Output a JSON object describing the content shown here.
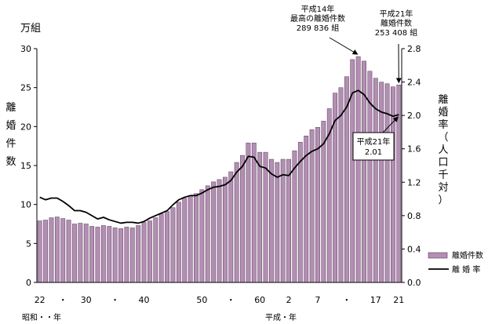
{
  "chart_data": {
    "type": "bar",
    "title": "",
    "left_unit": "万組",
    "left_axis_label": [
      "離",
      "婚",
      "件",
      "数"
    ],
    "right_axis_label": [
      "離",
      "婚",
      "率",
      "（",
      "人",
      "口",
      "千",
      "対",
      "）"
    ],
    "xlabel_showa": "昭和・・年",
    "xlabel_heisei": "平成・年",
    "x_ticks": [
      "22",
      "・",
      "30",
      "・",
      "40",
      "50",
      "・",
      "60",
      "2",
      "7",
      "・",
      "17",
      "21"
    ],
    "ylim_left": [
      0,
      30
    ],
    "ylim_right": [
      0,
      2.8
    ],
    "yticks_left": [
      "0",
      "5",
      "10",
      "15",
      "20",
      "25",
      "30"
    ],
    "yticks_right": [
      "0.0",
      "0.4",
      "0.8",
      "1.2",
      "1.6",
      "2.0",
      "2.4",
      "2.8"
    ],
    "categories": [
      "S22",
      "S23",
      "S24",
      "S25",
      "S26",
      "S27",
      "S28",
      "S29",
      "S30",
      "S31",
      "S32",
      "S33",
      "S34",
      "S35",
      "S36",
      "S37",
      "S38",
      "S39",
      "S40",
      "S41",
      "S42",
      "S43",
      "S44",
      "S45",
      "S46",
      "S47",
      "S48",
      "S49",
      "S50",
      "S51",
      "S52",
      "S53",
      "S54",
      "S55",
      "S56",
      "S57",
      "S58",
      "S59",
      "S60",
      "S61",
      "S62",
      "S63",
      "H1",
      "H2",
      "H3",
      "H4",
      "H5",
      "H6",
      "H7",
      "H8",
      "H9",
      "H10",
      "H11",
      "H12",
      "H13",
      "H14",
      "H15",
      "H16",
      "H17",
      "H18",
      "H19",
      "H20",
      "H21"
    ],
    "series": [
      {
        "name": "離婚件数",
        "axis": "left",
        "color": "#b38fb3",
        "values": [
          7.9,
          8.0,
          8.3,
          8.4,
          8.2,
          8.0,
          7.5,
          7.6,
          7.5,
          7.2,
          7.1,
          7.3,
          7.2,
          7.0,
          6.9,
          7.1,
          7.0,
          7.3,
          7.7,
          7.9,
          8.3,
          8.8,
          9.1,
          9.6,
          10.3,
          10.8,
          11.1,
          11.4,
          11.9,
          12.4,
          12.9,
          13.2,
          13.5,
          14.2,
          15.4,
          16.3,
          17.9,
          17.9,
          16.7,
          16.7,
          15.8,
          15.4,
          15.8,
          15.8,
          16.9,
          18.0,
          18.8,
          19.6,
          19.9,
          20.7,
          22.3,
          24.3,
          25.0,
          26.4,
          28.6,
          28.98,
          28.4,
          27.1,
          26.2,
          25.7,
          25.5,
          25.1,
          25.34
        ]
      },
      {
        "name": "離婚率",
        "axis": "right",
        "color": "#000000",
        "values": [
          1.02,
          0.99,
          1.01,
          1.01,
          0.97,
          0.92,
          0.86,
          0.86,
          0.84,
          0.8,
          0.76,
          0.78,
          0.75,
          0.73,
          0.71,
          0.72,
          0.72,
          0.71,
          0.73,
          0.77,
          0.8,
          0.83,
          0.86,
          0.93,
          0.99,
          1.02,
          1.04,
          1.04,
          1.07,
          1.11,
          1.14,
          1.15,
          1.17,
          1.22,
          1.32,
          1.39,
          1.51,
          1.5,
          1.39,
          1.37,
          1.3,
          1.26,
          1.29,
          1.28,
          1.37,
          1.45,
          1.52,
          1.57,
          1.6,
          1.66,
          1.78,
          1.94,
          2.0,
          2.1,
          2.27,
          2.3,
          2.25,
          2.15,
          2.08,
          2.04,
          2.02,
          1.99,
          2.01
        ]
      }
    ],
    "legend": {
      "placement": "bottom-right",
      "items": [
        "離婚件数",
        "離 婚 率"
      ]
    },
    "annotations": [
      {
        "lines": [
          "平成14年",
          "最高の離婚件数",
          "289 836 組"
        ]
      },
      {
        "lines": [
          "平成21年",
          "離婚件数",
          "253 408 組"
        ]
      },
      {
        "lines": [
          "平成21年",
          "2.01"
        ]
      }
    ],
    "grid": false
  }
}
